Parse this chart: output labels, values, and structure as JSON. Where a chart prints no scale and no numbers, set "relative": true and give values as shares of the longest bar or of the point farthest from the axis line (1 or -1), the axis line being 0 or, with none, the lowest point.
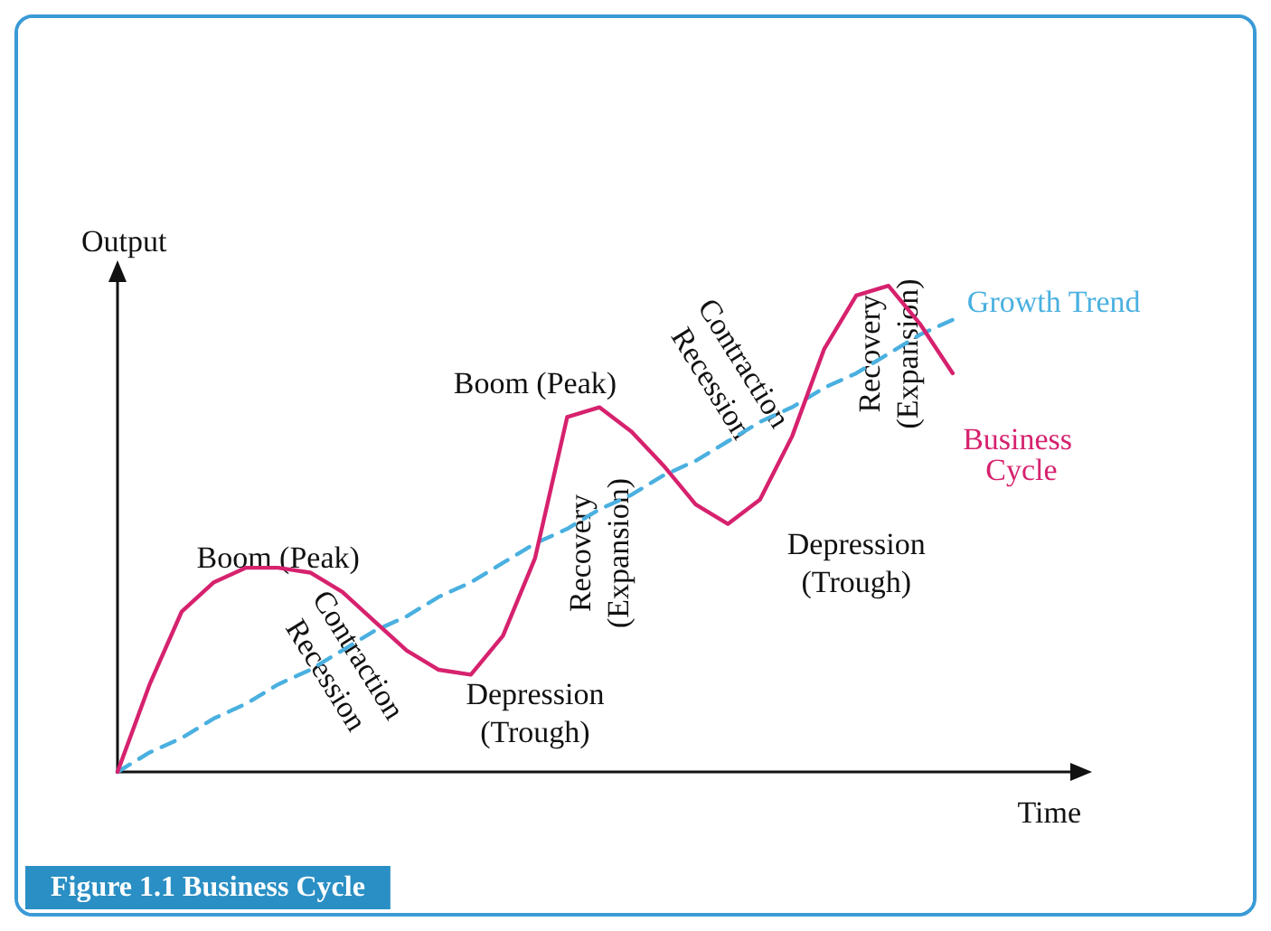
{
  "chart_data": {
    "type": "line",
    "title": "Figure 1.1 Business Cycle",
    "xlabel": "Time",
    "ylabel": "Output",
    "relative": true,
    "grid": false,
    "legend": false,
    "marker": "none",
    "categories": [
      null,
      null,
      null,
      null,
      null,
      null,
      null,
      null,
      null,
      null,
      null,
      null,
      null,
      null,
      null,
      null,
      null,
      null,
      null,
      null,
      null,
      null,
      null,
      null,
      null,
      null,
      null
    ],
    "series": [
      {
        "name": "Growth Trend",
        "color": "#4ab0e0",
        "line_style": "dashed",
        "values": [
          0,
          0.04,
          0.07,
          0.11,
          0.14,
          0.18,
          0.21,
          0.25,
          0.29,
          0.32,
          0.36,
          0.39,
          0.43,
          0.47,
          0.5,
          0.54,
          0.57,
          0.61,
          0.64,
          0.68,
          0.72,
          0.75,
          0.79,
          0.82,
          0.86,
          0.9,
          0.93
        ]
      },
      {
        "name": "Business Cycle",
        "color": "#d6226e",
        "line_style": "solid",
        "values": [
          0,
          0.18,
          0.33,
          0.39,
          0.42,
          0.42,
          0.41,
          0.37,
          0.31,
          0.25,
          0.21,
          0.2,
          0.28,
          0.44,
          0.73,
          0.75,
          0.7,
          0.63,
          0.55,
          0.51,
          0.56,
          0.69,
          0.87,
          0.98,
          1,
          0.92,
          0.82
        ]
      }
    ],
    "annotations": [
      "Boom (Peak)",
      "Contraction Recession",
      "Depression (Trough)",
      "Recovery (Expansion)",
      "Boom (Peak)",
      "Contraction Recession",
      "Depression (Trough)",
      "Recovery (Expansion)"
    ]
  }
}
